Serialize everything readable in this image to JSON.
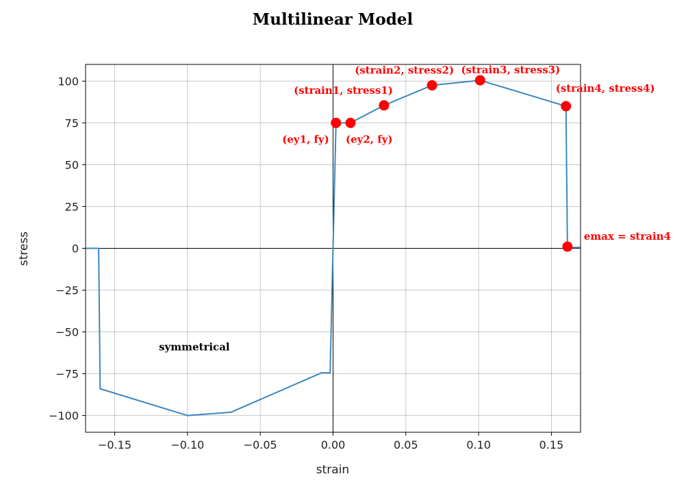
{
  "chart_data": {
    "type": "line",
    "title": "Multilinear Model",
    "xlabel": "strain",
    "ylabel": "stress",
    "xlim": [
      -0.17,
      0.17
    ],
    "ylim": [
      -110,
      110
    ],
    "xticks": [
      -0.15,
      -0.1,
      -0.05,
      0.0,
      0.05,
      0.1,
      0.15
    ],
    "xtick_labels": [
      "−0.15",
      "−0.10",
      "−0.05",
      "0.00",
      "0.05",
      "0.10",
      "0.15"
    ],
    "yticks": [
      100,
      75,
      50,
      25,
      0,
      -25,
      -50,
      -75,
      -100
    ],
    "ytick_labels": [
      "100",
      "75",
      "50",
      "25",
      "0",
      "−25",
      "−50",
      "−75",
      "−100"
    ],
    "grid": true,
    "series": [
      {
        "color": "#3a87bf",
        "x": [
          -0.17,
          -0.161,
          -0.16,
          -0.1,
          -0.07,
          -0.008,
          -0.002,
          0.002,
          0.012,
          0.035,
          0.068,
          0.101,
          0.16,
          0.161,
          0.17
        ],
        "y": [
          0,
          0,
          -84,
          -100,
          -98,
          -74.5,
          -74.5,
          75,
          75,
          85.5,
          97.5,
          100.5,
          85,
          0.5,
          0.5
        ]
      }
    ],
    "points": {
      "color": "#ff0000",
      "x": [
        0.002,
        0.012,
        0.035,
        0.068,
        0.101,
        0.16,
        0.161
      ],
      "y": [
        75,
        75,
        85.5,
        97.5,
        100.5,
        85,
        1
      ]
    },
    "annotations": [
      {
        "text": "(ey1, fy)",
        "x": 0.002,
        "y": 75,
        "color": "red",
        "anchor": "end",
        "dx": -10,
        "dy": 29
      },
      {
        "text": "(ey2, fy)",
        "x": 0.012,
        "y": 75,
        "color": "red",
        "anchor": "start",
        "dx": -7,
        "dy": 29
      },
      {
        "text": "(strain1, stress1)",
        "x": 0.035,
        "y": 85.5,
        "color": "red",
        "anchor": "end",
        "dx": 13,
        "dy": -17
      },
      {
        "text": "(strain2, stress2)",
        "x": 0.068,
        "y": 97.5,
        "color": "red",
        "anchor": "end",
        "dx": 32,
        "dy": -17
      },
      {
        "text": "(strain3, stress3)",
        "x": 0.101,
        "y": 100.5,
        "color": "red",
        "anchor": "end",
        "dx": 117,
        "dy": -10
      },
      {
        "text": "(strain4, stress4)",
        "x": 0.16,
        "y": 85,
        "color": "red",
        "anchor": "start",
        "dx": -15,
        "dy": -21
      },
      {
        "text": "emax = strain4",
        "x": 0.161,
        "y": 1,
        "color": "red",
        "anchor": "start",
        "dx": 24,
        "dy": -10
      },
      {
        "text": "symmetrical",
        "x": -0.1,
        "y": -61,
        "color": "black",
        "anchor": "middle",
        "dx": 10,
        "dy": 0
      }
    ]
  }
}
